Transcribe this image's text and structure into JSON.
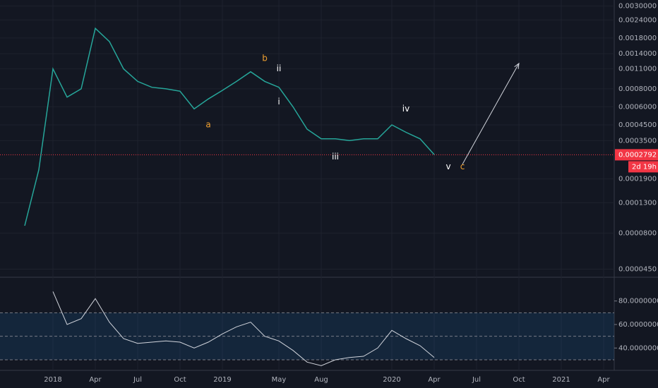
{
  "chart_data": {
    "type": "line",
    "log_scale": true,
    "color": "#26a69a",
    "x": [
      "2017-11",
      "2017-12",
      "2018-01",
      "2018-02",
      "2018-03",
      "2018-04",
      "2018-05",
      "2018-06",
      "2018-07",
      "2018-08",
      "2018-09",
      "2018-10",
      "2018-11",
      "2018-12",
      "2019-01",
      "2019-02",
      "2019-03",
      "2019-04",
      "2019-05",
      "2019-06",
      "2019-07",
      "2019-08",
      "2019-09",
      "2019-10",
      "2019-11",
      "2019-12",
      "2020-01",
      "2020-02",
      "2020-03",
      "2020-04"
    ],
    "values": [
      9e-05,
      0.00022,
      0.0011,
      0.0007,
      0.0008,
      0.0021,
      0.0017,
      0.0011,
      0.0009,
      0.00082,
      0.0008,
      0.00077,
      0.00058,
      0.00068,
      0.00078,
      0.0009,
      0.00105,
      0.0009,
      0.00082,
      0.0006,
      0.00042,
      0.00036,
      0.00036,
      0.00035,
      0.00036,
      0.00036,
      0.00045,
      0.0004,
      0.00036,
      0.00028
    ],
    "xlim": [
      "2017-09",
      "2021-05"
    ],
    "xticks": [
      {
        "value": "2018-01",
        "label": "2018"
      },
      {
        "value": "2018-04",
        "label": "Apr"
      },
      {
        "value": "2018-07",
        "label": "Jul"
      },
      {
        "value": "2018-10",
        "label": "Oct"
      },
      {
        "value": "2019-01",
        "label": "2019"
      },
      {
        "value": "2019-05",
        "label": "May"
      },
      {
        "value": "2019-08",
        "label": "Aug"
      },
      {
        "value": "2020-01",
        "label": "2020"
      },
      {
        "value": "2020-04",
        "label": "Apr"
      },
      {
        "value": "2020-07",
        "label": "Jul"
      },
      {
        "value": "2020-10",
        "label": "Oct"
      },
      {
        "value": "2021-01",
        "label": "2021"
      },
      {
        "value": "2021-04",
        "label": "Apr"
      }
    ],
    "ylim": [
      4e-05,
      0.0033
    ],
    "yticks": [
      {
        "value": 0.003,
        "label": "0.0030000"
      },
      {
        "value": 0.0024,
        "label": "0.0024000"
      },
      {
        "value": 0.0018,
        "label": "0.0018000"
      },
      {
        "value": 0.0014,
        "label": "0.0014000"
      },
      {
        "value": 0.0011,
        "label": "0.0011000"
      },
      {
        "value": 0.0008,
        "label": "0.0008000"
      },
      {
        "value": 0.0006,
        "label": "0.0006000"
      },
      {
        "value": 0.00045,
        "label": "0.0004500"
      },
      {
        "value": 0.00035,
        "label": "0.0003500"
      },
      {
        "value": 0.00019,
        "label": "0.0001900"
      },
      {
        "value": 0.00013,
        "label": "0.0001300"
      },
      {
        "value": 8e-05,
        "label": "0.0000800"
      },
      {
        "value": 4.5e-05,
        "label": "0.0000450"
      }
    ],
    "last_price": {
      "value": 0.0002792,
      "countdown": "2d 19h",
      "color": "#f23645"
    },
    "annotations": [
      {
        "text": "a",
        "x": "2018-12",
        "y": 0.00045,
        "color": "#f0a030"
      },
      {
        "text": "b",
        "x": "2019-04",
        "y": 0.0013,
        "color": "#f0a030"
      },
      {
        "text": "ii",
        "x": "2019-05",
        "y": 0.0011,
        "color": "#ffffff"
      },
      {
        "text": "i",
        "x": "2019-05",
        "y": 0.00065,
        "color": "#ffffff"
      },
      {
        "text": "iii",
        "x": "2019-09",
        "y": 0.00027,
        "color": "#ffffff"
      },
      {
        "text": "iv",
        "x": "2020-02",
        "y": 0.00058,
        "color": "#ffffff"
      },
      {
        "text": "v",
        "x": "2020-05",
        "y": 0.00023,
        "color": "#ffffff"
      },
      {
        "text": "c",
        "x": "2020-06",
        "y": 0.00023,
        "color": "#f0a030"
      }
    ],
    "arrow": {
      "x": [
        "2020-06",
        "2020-10"
      ],
      "y": [
        0.00024,
        0.0012
      ],
      "color": "#d1d4dc"
    },
    "rsi": {
      "type": "line",
      "color": "#d1d4dc",
      "x": [
        "2018-01",
        "2018-02",
        "2018-03",
        "2018-04",
        "2018-05",
        "2018-06",
        "2018-07",
        "2018-08",
        "2018-09",
        "2018-10",
        "2018-11",
        "2018-12",
        "2019-01",
        "2019-02",
        "2019-03",
        "2019-04",
        "2019-05",
        "2019-06",
        "2019-07",
        "2019-08",
        "2019-09",
        "2019-10",
        "2019-11",
        "2019-12",
        "2020-01",
        "2020-02",
        "2020-03",
        "2020-04"
      ],
      "values": [
        88,
        60,
        65,
        82,
        62,
        48,
        44,
        45,
        46,
        45,
        40,
        45,
        52,
        58,
        62,
        50,
        46,
        38,
        28,
        25,
        30,
        32,
        33,
        40,
        55,
        48,
        42,
        32
      ],
      "ylim": [
        21,
        99
      ],
      "yticks": [
        {
          "value": 80,
          "label": "80.0000000"
        },
        {
          "value": 60,
          "label": "60.0000000"
        },
        {
          "value": 40,
          "label": "40.0000000"
        }
      ],
      "levels": [
        30,
        50,
        70
      ]
    }
  }
}
